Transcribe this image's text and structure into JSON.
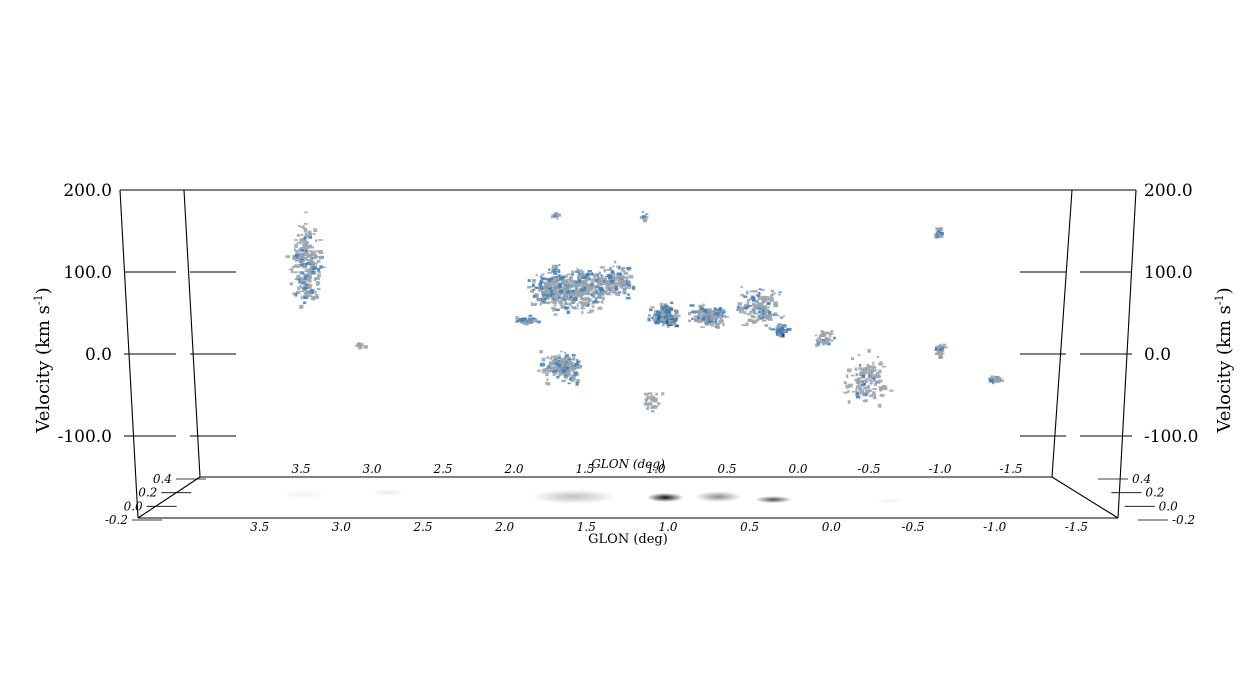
{
  "chart_data": {
    "type": "3d-position-position-velocity",
    "axes": {
      "velocity": {
        "label": "Velocity (km s",
        "label_superscript": "-1",
        "label_close": ")",
        "ticks": [
          "200.0",
          "100.0",
          "0.0",
          "-100.0"
        ],
        "tick_values": [
          200,
          100,
          0,
          -100
        ],
        "range": [
          -150,
          200
        ]
      },
      "glon": {
        "label": "GLON (deg)",
        "ticks": [
          "3.5",
          "3.0",
          "2.5",
          "2.0",
          "1.5",
          "1.0",
          "0.5",
          "0.0",
          "-0.5",
          "-1.0",
          "-1.5"
        ],
        "tick_values": [
          3.5,
          3.0,
          2.5,
          2.0,
          1.5,
          1.0,
          0.5,
          0.0,
          -0.5,
          -1.0,
          -1.5
        ],
        "range": [
          4.0,
          -2.0
        ]
      },
      "glat": {
        "ticks": [
          "0.4",
          "0.2",
          "0.0",
          "-0.2"
        ],
        "tick_values": [
          0.4,
          0.2,
          0.0,
          -0.2
        ]
      }
    },
    "clouds": [
      {
        "l": 3.2,
        "v": 110,
        "dl": 0.17,
        "dv": 80,
        "n": 240,
        "blue": 0.3
      },
      {
        "l": 2.85,
        "v": 12,
        "dl": 0.05,
        "dv": 5,
        "n": 12,
        "blue": 0.1
      },
      {
        "l": 1.7,
        "v": 42,
        "dl": 0.12,
        "dv": 8,
        "n": 40,
        "blue": 0.5
      },
      {
        "l": 1.5,
        "v": 80,
        "dl": 0.28,
        "dv": 40,
        "n": 260,
        "blue": 0.45
      },
      {
        "l": 1.3,
        "v": 80,
        "dl": 0.3,
        "dv": 40,
        "n": 220,
        "blue": 0.3
      },
      {
        "l": 1.45,
        "v": -15,
        "dl": 0.22,
        "dv": 28,
        "n": 190,
        "blue": 0.35
      },
      {
        "l": 1.1,
        "v": 90,
        "dl": 0.2,
        "dv": 30,
        "n": 140,
        "blue": 0.25
      },
      {
        "l": 0.75,
        "v": 48,
        "dl": 0.14,
        "dv": 22,
        "n": 160,
        "blue": 0.8
      },
      {
        "l": 0.45,
        "v": 48,
        "dl": 0.2,
        "dv": 20,
        "n": 150,
        "blue": 0.5
      },
      {
        "l": 0.1,
        "v": 60,
        "dl": 0.25,
        "dv": 35,
        "n": 140,
        "blue": 0.3
      },
      {
        "l": -0.05,
        "v": 30,
        "dl": 0.08,
        "dv": 12,
        "n": 50,
        "blue": 0.9
      },
      {
        "l": -0.65,
        "v": -30,
        "dl": 0.22,
        "dv": 45,
        "n": 120,
        "blue": 0.2
      },
      {
        "l": -0.35,
        "v": 20,
        "dl": 0.12,
        "dv": 20,
        "n": 40,
        "blue": 0.2
      },
      {
        "l": -1.1,
        "v": 148,
        "dl": 0.05,
        "dv": 12,
        "n": 25,
        "blue": 0.5
      },
      {
        "l": -1.15,
        "v": 6,
        "dl": 0.06,
        "dv": 12,
        "n": 30,
        "blue": 0.2
      },
      {
        "l": -1.55,
        "v": -30,
        "dl": 0.08,
        "dv": 7,
        "n": 30,
        "blue": 0.35
      },
      {
        "l": 0.9,
        "v": 168,
        "dl": 0.04,
        "dv": 8,
        "n": 10,
        "blue": 0.1
      },
      {
        "l": 1.5,
        "v": 170,
        "dl": 0.05,
        "dv": 6,
        "n": 10,
        "blue": 0.2
      },
      {
        "l": 0.85,
        "v": -55,
        "dl": 0.12,
        "dv": 25,
        "n": 30,
        "blue": 0.0
      }
    ],
    "projection_blobs": [
      {
        "l": 1.35,
        "b": 0.12,
        "dl": 0.28,
        "db": 0.08,
        "intensity": 0.25
      },
      {
        "l": 0.75,
        "b": 0.1,
        "dl": 0.12,
        "db": 0.05,
        "intensity": 0.95
      },
      {
        "l": 0.4,
        "b": 0.12,
        "dl": 0.15,
        "db": 0.06,
        "intensity": 0.45
      },
      {
        "l": 0.05,
        "b": 0.05,
        "dl": 0.12,
        "db": 0.04,
        "intensity": 0.7
      },
      {
        "l": 2.6,
        "b": 0.22,
        "dl": 0.12,
        "db": 0.04,
        "intensity": 0.08
      },
      {
        "l": 3.15,
        "b": 0.18,
        "dl": 0.15,
        "db": 0.05,
        "intensity": 0.06
      },
      {
        "l": -0.7,
        "b": 0.02,
        "dl": 0.1,
        "db": 0.03,
        "intensity": 0.06
      }
    ],
    "colors": {
      "cloud_grey": "#9aa3ab",
      "cloud_blue": "#3d7fb8",
      "cloud_dark": "#123a6e"
    }
  }
}
